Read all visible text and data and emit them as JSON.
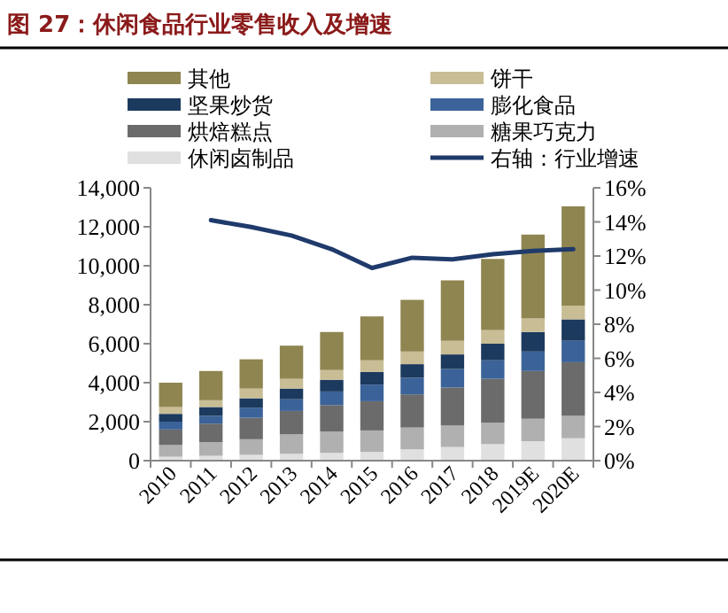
{
  "chart_data": {
    "type": "bar",
    "title": "图 27：休闲食品行业零售收入及增速",
    "categories": [
      "2010",
      "2011",
      "2012",
      "2013",
      "2014",
      "2015",
      "2016",
      "2017",
      "2018",
      "2019E",
      "2020E"
    ],
    "stacked": true,
    "legend": "top",
    "grid": false,
    "series": [
      {
        "name": "休闲卤制品",
        "color": "#e0e0e0",
        "values": [
          200,
          250,
          300,
          350,
          400,
          450,
          580,
          700,
          850,
          1000,
          1150
        ]
      },
      {
        "name": "糖果巧克力",
        "color": "#b0b0b0",
        "values": [
          600,
          700,
          800,
          1000,
          1100,
          1100,
          1120,
          1100,
          1100,
          1150,
          1150
        ]
      },
      {
        "name": "烘焙糕点",
        "color": "#6b6b6b",
        "values": [
          800,
          950,
          1100,
          1200,
          1350,
          1500,
          1700,
          1950,
          2250,
          2450,
          2750
        ]
      },
      {
        "name": "膨化食品",
        "color": "#3b6399",
        "values": [
          400,
          400,
          500,
          600,
          700,
          850,
          850,
          950,
          950,
          1000,
          1100
        ]
      },
      {
        "name": "坚果炒货",
        "color": "#1c3a5e",
        "values": [
          400,
          450,
          500,
          550,
          600,
          650,
          700,
          750,
          850,
          1000,
          1100
        ]
      },
      {
        "name": "饼干",
        "color": "#c8bd95",
        "values": [
          350,
          350,
          500,
          500,
          500,
          600,
          650,
          700,
          700,
          700,
          700
        ]
      },
      {
        "name": "其他",
        "color": "#8f8550",
        "values": [
          1250,
          1500,
          1500,
          1700,
          1950,
          2250,
          2650,
          3100,
          3650,
          4300,
          5100
        ]
      },
      {
        "name": "右轴：行业增速",
        "type": "line",
        "axis": "y2",
        "color": "#1f3a6b",
        "values": [
          null,
          14.1,
          13.7,
          13.2,
          12.4,
          11.3,
          11.9,
          11.8,
          12.1,
          12.3,
          12.4
        ]
      }
    ],
    "ylim": [
      0,
      14000
    ],
    "yticks": [
      0,
      {
        "value": 2000,
        "label": "2,000"
      },
      {
        "value": 4000,
        "label": "4,000"
      },
      {
        "value": 6000,
        "label": "6,000"
      },
      {
        "value": 8000,
        "label": "8,000"
      },
      {
        "value": 10000,
        "label": "10,000"
      },
      {
        "value": 12000,
        "label": "12,000"
      },
      {
        "value": 14000,
        "label": "14,000"
      }
    ],
    "y2lim": [
      0,
      16
    ],
    "y2ticks": [
      {
        "value": 0,
        "label": "0%"
      },
      {
        "value": 2,
        "label": "2%"
      },
      {
        "value": 4,
        "label": "4%"
      },
      {
        "value": 6,
        "label": "6%"
      },
      {
        "value": 8,
        "label": "8%"
      },
      {
        "value": 10,
        "label": "10%"
      },
      {
        "value": 12,
        "label": "12%"
      },
      {
        "value": 14,
        "label": "14%"
      },
      {
        "value": 16,
        "label": "16%"
      }
    ]
  }
}
